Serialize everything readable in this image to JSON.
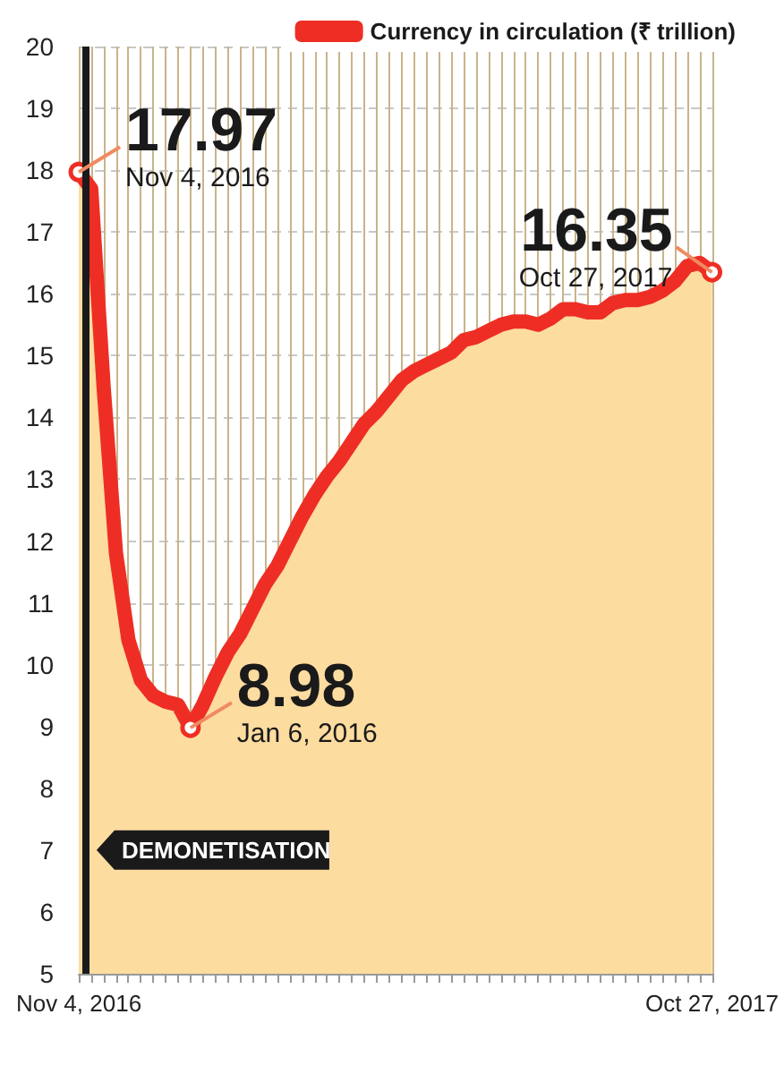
{
  "chart_data": {
    "type": "area",
    "x": [
      "2016-11-04",
      "2016-11-11",
      "2016-11-18",
      "2016-11-25",
      "2016-12-02",
      "2016-12-09",
      "2016-12-16",
      "2016-12-23",
      "2016-12-30",
      "2017-01-06",
      "2017-01-13",
      "2017-01-20",
      "2017-01-27",
      "2017-02-03",
      "2017-02-10",
      "2017-02-17",
      "2017-02-24",
      "2017-03-03",
      "2017-03-10",
      "2017-03-17",
      "2017-03-24",
      "2017-03-31",
      "2017-04-07",
      "2017-04-14",
      "2017-04-21",
      "2017-04-28",
      "2017-05-05",
      "2017-05-12",
      "2017-05-19",
      "2017-05-26",
      "2017-06-02",
      "2017-06-09",
      "2017-06-16",
      "2017-06-23",
      "2017-06-30",
      "2017-07-07",
      "2017-07-14",
      "2017-07-21",
      "2017-07-28",
      "2017-08-04",
      "2017-08-11",
      "2017-08-18",
      "2017-08-25",
      "2017-09-01",
      "2017-09-08",
      "2017-09-15",
      "2017-09-22",
      "2017-09-29",
      "2017-10-06",
      "2017-10-13",
      "2017-10-20",
      "2017-10-27"
    ],
    "series": [
      {
        "name": "Currency in circulation (₹ trillion)",
        "color": "#ee2e24",
        "values": [
          17.97,
          17.7,
          14.5,
          11.8,
          10.4,
          9.75,
          9.5,
          9.4,
          9.35,
          8.98,
          9.35,
          9.8,
          10.2,
          10.5,
          10.9,
          11.3,
          11.6,
          12.0,
          12.4,
          12.75,
          13.05,
          13.3,
          13.6,
          13.9,
          14.1,
          14.35,
          14.6,
          14.75,
          14.85,
          14.95,
          15.05,
          15.25,
          15.3,
          15.4,
          15.5,
          15.55,
          15.55,
          15.5,
          15.6,
          15.75,
          15.75,
          15.7,
          15.7,
          15.85,
          15.9,
          15.9,
          15.95,
          16.05,
          16.2,
          16.45,
          16.5,
          16.35
        ],
        "value_labels": [
          "17.97",
          null,
          null,
          null,
          null,
          null,
          null,
          null,
          null,
          "8.98",
          null,
          null,
          null,
          null,
          null,
          null,
          null,
          null,
          null,
          null,
          null,
          null,
          null,
          null,
          null,
          null,
          null,
          null,
          null,
          null,
          null,
          null,
          null,
          null,
          null,
          null,
          null,
          null,
          null,
          null,
          null,
          null,
          null,
          null,
          null,
          null,
          null,
          null,
          null,
          null,
          null,
          "16.35"
        ]
      }
    ],
    "xlim": [
      "2016-11-04",
      "2017-10-27"
    ],
    "xticks": [
      {
        "value": "2016-11-04",
        "label": "Nov 4, 2016"
      },
      {
        "value": "2016-11-11",
        "label": null
      },
      {
        "value": "2016-11-18",
        "label": null
      },
      {
        "value": "2016-11-25",
        "label": null
      },
      {
        "value": "2016-12-02",
        "label": null
      },
      {
        "value": "2016-12-09",
        "label": null
      },
      {
        "value": "2016-12-16",
        "label": null
      },
      {
        "value": "2016-12-23",
        "label": null
      },
      {
        "value": "2016-12-30",
        "label": null
      },
      {
        "value": "2017-01-06",
        "label": null
      },
      {
        "value": "2017-01-13",
        "label": null
      },
      {
        "value": "2017-01-20",
        "label": null
      },
      {
        "value": "2017-01-27",
        "label": null
      },
      {
        "value": "2017-02-03",
        "label": null
      },
      {
        "value": "2017-02-10",
        "label": null
      },
      {
        "value": "2017-02-17",
        "label": null
      },
      {
        "value": "2017-02-24",
        "label": null
      },
      {
        "value": "2017-03-03",
        "label": null
      },
      {
        "value": "2017-03-10",
        "label": null
      },
      {
        "value": "2017-03-17",
        "label": null
      },
      {
        "value": "2017-03-24",
        "label": null
      },
      {
        "value": "2017-03-31",
        "label": null
      },
      {
        "value": "2017-04-07",
        "label": null
      },
      {
        "value": "2017-04-14",
        "label": null
      },
      {
        "value": "2017-04-21",
        "label": null
      },
      {
        "value": "2017-04-28",
        "label": null
      },
      {
        "value": "2017-05-05",
        "label": null
      },
      {
        "value": "2017-05-12",
        "label": null
      },
      {
        "value": "2017-05-19",
        "label": null
      },
      {
        "value": "2017-05-26",
        "label": null
      },
      {
        "value": "2017-06-02",
        "label": null
      },
      {
        "value": "2017-06-09",
        "label": null
      },
      {
        "value": "2017-06-16",
        "label": null
      },
      {
        "value": "2017-06-23",
        "label": null
      },
      {
        "value": "2017-06-30",
        "label": null
      },
      {
        "value": "2017-07-07",
        "label": null
      },
      {
        "value": "2017-07-14",
        "label": null
      },
      {
        "value": "2017-07-21",
        "label": null
      },
      {
        "value": "2017-07-28",
        "label": null
      },
      {
        "value": "2017-08-04",
        "label": null
      },
      {
        "value": "2017-08-11",
        "label": null
      },
      {
        "value": "2017-08-18",
        "label": null
      },
      {
        "value": "2017-08-25",
        "label": null
      },
      {
        "value": "2017-09-01",
        "label": null
      },
      {
        "value": "2017-09-08",
        "label": null
      },
      {
        "value": "2017-09-15",
        "label": null
      },
      {
        "value": "2017-09-22",
        "label": null
      },
      {
        "value": "2017-09-29",
        "label": null
      },
      {
        "value": "2017-10-06",
        "label": null
      },
      {
        "value": "2017-10-13",
        "label": null
      },
      {
        "value": "2017-10-20",
        "label": null
      },
      {
        "value": "2017-10-27",
        "label": "Oct 27, 2017"
      }
    ],
    "ylim": [
      5,
      20
    ],
    "yticks": [
      5,
      6,
      7,
      8,
      9,
      10,
      11,
      12,
      13,
      14,
      15,
      16,
      17,
      18,
      19,
      20
    ],
    "grid": true,
    "legend": "top right",
    "ref_lines": [
      {
        "axis": "x",
        "value": "2016-11-08",
        "label": "DEMONETISATION",
        "color": "#1a1a1a"
      }
    ],
    "annotations": [
      {
        "text": "Nov 4, 2016",
        "x": "2016-11-04",
        "y": 17.97
      },
      {
        "text": "Jan 6, 2016",
        "x": "2017-01-06",
        "y": 8.98
      },
      {
        "text": "Oct 27, 2017",
        "x": "2017-10-27",
        "y": 16.35
      }
    ]
  }
}
